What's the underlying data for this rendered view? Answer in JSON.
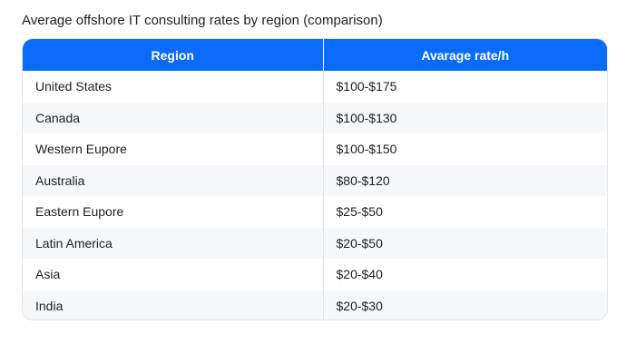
{
  "chart_data": {
    "type": "table",
    "title": "Average offshore IT consulting rates by region (comparison)",
    "columns": [
      "Region",
      "Avarage rate/h"
    ],
    "rows": [
      {
        "region": "United States",
        "rate": "$100-$175"
      },
      {
        "region": "Canada",
        "rate": "$100-$130"
      },
      {
        "region": "Western Eupore",
        "rate": "$100-$150"
      },
      {
        "region": "Australia",
        "rate": "$80-$120"
      },
      {
        "region": "Eastern Eupore",
        "rate": "$25-$50"
      },
      {
        "region": "Latin America",
        "rate": "$20-$50"
      },
      {
        "region": "Asia",
        "rate": "$20-$40"
      },
      {
        "region": "India",
        "rate": "$20-$30"
      }
    ]
  },
  "colors": {
    "header_bg": "#0a6cff",
    "header_text": "#ffffff",
    "stripe": "#f6f7f9",
    "border": "#e2e4e8"
  }
}
